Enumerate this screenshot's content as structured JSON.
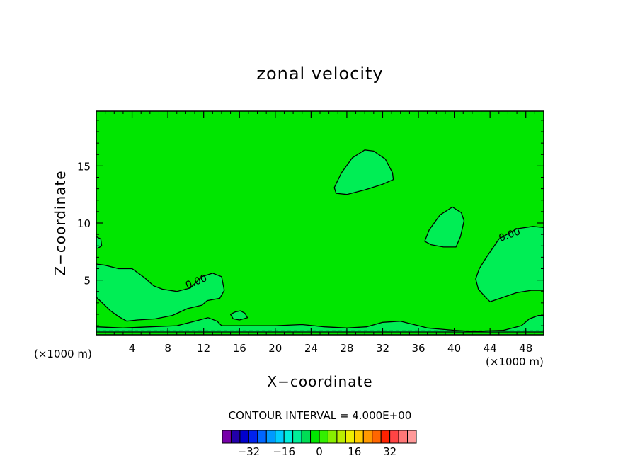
{
  "chart_data": {
    "type": "contour",
    "title": "zonal velocity",
    "xlabel": "X−coordinate",
    "ylabel": "Z−coordinate",
    "xunit_left": "(×1000 m)",
    "xunit_right": "(×1000 m)",
    "xlim": [
      0,
      50
    ],
    "ylim": [
      0.2,
      19.8
    ],
    "xticks": [
      4,
      8,
      12,
      16,
      20,
      24,
      28,
      32,
      36,
      40,
      44,
      48
    ],
    "yticks": [
      5,
      10,
      15
    ],
    "background_color": "#00e600",
    "region_color": "#00ee55",
    "contour_labels": [
      {
        "text": "0.00",
        "x": 11.3,
        "z": 4.6,
        "angle": -22
      },
      {
        "text": "0.00",
        "x": 46.3,
        "z": 8.7,
        "angle": -20
      }
    ],
    "regions": [
      {
        "name": "island-upper",
        "points": [
          [
            26.6,
            13.1
          ],
          [
            26.8,
            12.6
          ],
          [
            28.0,
            12.5
          ],
          [
            30.0,
            12.9
          ],
          [
            32.0,
            13.4
          ],
          [
            33.2,
            13.8
          ],
          [
            33.1,
            14.4
          ],
          [
            32.3,
            15.6
          ],
          [
            31.0,
            16.3
          ],
          [
            30.0,
            16.4
          ],
          [
            28.6,
            15.7
          ],
          [
            27.4,
            14.4
          ]
        ]
      },
      {
        "name": "island-mid",
        "points": [
          [
            36.7,
            8.4
          ],
          [
            37.4,
            8.1
          ],
          [
            38.8,
            7.9
          ],
          [
            40.2,
            7.9
          ],
          [
            40.7,
            8.8
          ],
          [
            41.1,
            10.2
          ],
          [
            40.8,
            10.9
          ],
          [
            39.8,
            11.4
          ],
          [
            38.4,
            10.7
          ],
          [
            37.2,
            9.4
          ]
        ]
      },
      {
        "name": "right-lobe",
        "points": [
          [
            50.0,
            9.6
          ],
          [
            48.8,
            9.7
          ],
          [
            47.0,
            9.5
          ],
          [
            45.0,
            8.6
          ],
          [
            43.6,
            7.0
          ],
          [
            42.8,
            6.0
          ],
          [
            42.4,
            5.1
          ],
          [
            42.7,
            4.2
          ],
          [
            43.5,
            3.5
          ],
          [
            44.0,
            3.1
          ],
          [
            45.5,
            3.5
          ],
          [
            47.0,
            3.9
          ],
          [
            48.6,
            4.1
          ],
          [
            50.0,
            4.1
          ]
        ]
      },
      {
        "name": "left-lobe",
        "points": [
          [
            0.0,
            6.4
          ],
          [
            1.0,
            6.3
          ],
          [
            2.5,
            6.0
          ],
          [
            4.0,
            6.0
          ],
          [
            5.4,
            5.2
          ],
          [
            6.4,
            4.5
          ],
          [
            7.4,
            4.2
          ],
          [
            9.0,
            4.0
          ],
          [
            10.5,
            4.3
          ],
          [
            11.8,
            5.3
          ],
          [
            13.0,
            5.6
          ],
          [
            14.0,
            5.3
          ],
          [
            14.3,
            4.1
          ],
          [
            13.8,
            3.4
          ],
          [
            12.4,
            3.2
          ],
          [
            11.8,
            2.8
          ],
          [
            10.2,
            2.5
          ],
          [
            8.5,
            1.9
          ],
          [
            6.6,
            1.6
          ],
          [
            4.6,
            1.5
          ],
          [
            3.4,
            1.4
          ],
          [
            2.5,
            1.8
          ],
          [
            1.6,
            2.3
          ],
          [
            0.4,
            3.2
          ],
          [
            0.0,
            3.5
          ]
        ]
      },
      {
        "name": "left-edge-bump",
        "points": [
          [
            0.0,
            8.8
          ],
          [
            0.5,
            8.6
          ],
          [
            0.6,
            8.0
          ],
          [
            0.2,
            7.8
          ],
          [
            0.0,
            7.8
          ]
        ]
      },
      {
        "name": "bottom-strip",
        "points": [
          [
            0.0,
            0.9
          ],
          [
            3.0,
            0.8
          ],
          [
            6.0,
            0.9
          ],
          [
            9.0,
            1.0
          ],
          [
            11.0,
            1.4
          ],
          [
            12.5,
            1.7
          ],
          [
            13.5,
            1.4
          ],
          [
            14.0,
            1.0
          ],
          [
            17.0,
            1.0
          ],
          [
            20.0,
            1.0
          ],
          [
            23.0,
            1.1
          ],
          [
            25.5,
            0.9
          ],
          [
            28.0,
            0.8
          ],
          [
            30.2,
            0.9
          ],
          [
            32.0,
            1.3
          ],
          [
            34.0,
            1.4
          ],
          [
            35.5,
            1.1
          ],
          [
            37.0,
            0.8
          ],
          [
            40.0,
            0.6
          ],
          [
            42.0,
            0.5
          ],
          [
            45.5,
            0.6
          ],
          [
            47.5,
            1.0
          ],
          [
            48.4,
            1.6
          ],
          [
            49.4,
            1.9
          ],
          [
            50.0,
            1.9
          ],
          [
            50.0,
            0.45
          ],
          [
            0.0,
            0.45
          ]
        ]
      },
      {
        "name": "small-bump",
        "points": [
          [
            15.0,
            2.0
          ],
          [
            15.5,
            2.2
          ],
          [
            16.1,
            2.3
          ],
          [
            16.6,
            2.1
          ],
          [
            16.9,
            1.7
          ],
          [
            16.0,
            1.5
          ],
          [
            15.3,
            1.6
          ]
        ]
      }
    ],
    "lines": [
      {
        "name": "contour-bottom",
        "points": [
          [
            0.0,
            0.55
          ],
          [
            10.0,
            0.55
          ],
          [
            20.0,
            0.55
          ],
          [
            30.0,
            0.55
          ],
          [
            40.0,
            0.55
          ],
          [
            50.0,
            0.55
          ]
        ]
      }
    ],
    "colorbar": {
      "title": "CONTOUR INTERVAL =  4.000E+00",
      "colors": [
        "#7700aa",
        "#2200aa",
        "#0000cc",
        "#0022ee",
        "#0066ff",
        "#0099ff",
        "#00ccff",
        "#00eedd",
        "#00ee99",
        "#00dd55",
        "#00e600",
        "#33ee00",
        "#88ee00",
        "#bbee00",
        "#eeee00",
        "#ffcc00",
        "#ff9900",
        "#ff6600",
        "#ff2200",
        "#ff4444",
        "#ff7777",
        "#ff9999"
      ],
      "ticks": [
        -32,
        -16,
        0,
        16,
        32
      ],
      "range": [
        -44,
        44
      ]
    }
  }
}
